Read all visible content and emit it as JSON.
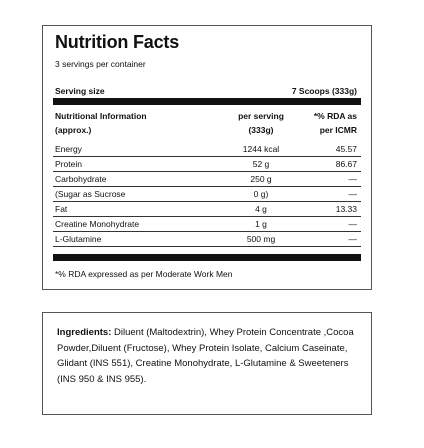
{
  "facts": {
    "title": "Nutrition Facts",
    "servings": "3 servings per container",
    "serving_size_label": "Serving size",
    "serving_size_value": "7 Scoops (333g)",
    "header": {
      "col1": [
        "Nutritional Information",
        "(approx.)"
      ],
      "col2": [
        "per serving",
        "(333g)"
      ],
      "col3": [
        "*% RDA as",
        "per ICMR"
      ]
    },
    "rows": [
      [
        "Energy",
        "1244 kcal",
        "45.57"
      ],
      [
        "Protein",
        "52 g",
        "86.67"
      ],
      [
        "Carbohydrate",
        "250 g",
        "—"
      ],
      [
        "(Sugar as Sucrose",
        "0 g)",
        "—"
      ],
      [
        "Fat",
        "4 g",
        "13.33"
      ],
      [
        "Creatine Monohydrate",
        "1 g",
        "—"
      ],
      [
        "L-Glutamine",
        "500 mg",
        "—"
      ]
    ],
    "footnote": "*% RDA expressed as per Moderate Work Men"
  },
  "ingredients": {
    "label": "Ingredients:",
    "text": "Diluent (Maltodextrin), Whey Protein Concentrate ,Cocoa Powder,Diluent (Fructose), Whey Protein Isolate, Calcium Caseinate, Glidant (INS 551), Creatine Monohydrate, L-Glutamine & Sweeteners (INS 950 & INS 955)."
  }
}
